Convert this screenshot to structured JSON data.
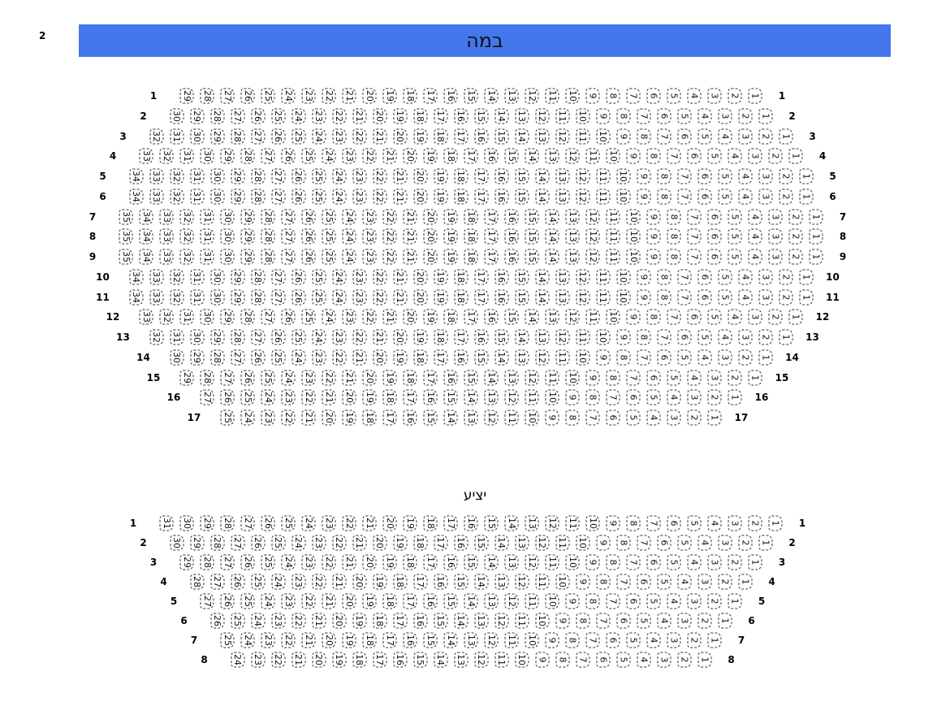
{
  "corner_label": "2",
  "stage": {
    "label": "במה",
    "color": "#4477ee"
  },
  "sections": [
    {
      "name": "orchestra",
      "title": "",
      "rows": [
        {
          "label": "1",
          "seats": 29
        },
        {
          "label": "2",
          "seats": 30
        },
        {
          "label": "3",
          "seats": 32
        },
        {
          "label": "4",
          "seats": 33
        },
        {
          "label": "5",
          "seats": 34
        },
        {
          "label": "6",
          "seats": 34
        },
        {
          "label": "7",
          "seats": 35
        },
        {
          "label": "8",
          "seats": 35
        },
        {
          "label": "9",
          "seats": 35
        },
        {
          "label": "10",
          "seats": 34
        },
        {
          "label": "11",
          "seats": 34
        },
        {
          "label": "12",
          "seats": 33
        },
        {
          "label": "13",
          "seats": 32
        },
        {
          "label": "14",
          "seats": 30
        },
        {
          "label": "15",
          "seats": 29
        },
        {
          "label": "16",
          "seats": 27
        },
        {
          "label": "17",
          "seats": 25
        }
      ]
    },
    {
      "name": "balcony",
      "title": "יציע",
      "rows": [
        {
          "label": "1",
          "seats": 31
        },
        {
          "label": "2",
          "seats": 30
        },
        {
          "label": "3",
          "seats": 29
        },
        {
          "label": "4",
          "seats": 28
        },
        {
          "label": "5",
          "seats": 27
        },
        {
          "label": "6",
          "seats": 26
        },
        {
          "label": "7",
          "seats": 25
        },
        {
          "label": "8",
          "seats": 24
        }
      ]
    }
  ]
}
